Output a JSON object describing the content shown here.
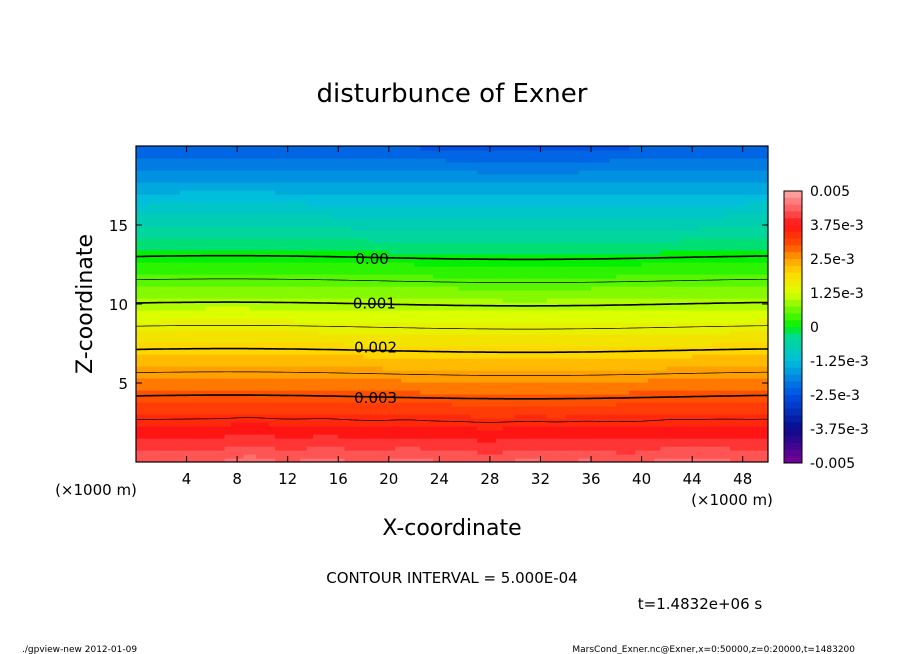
{
  "chart_data": {
    "type": "heatmap",
    "title": "disturbunce of Exner",
    "xlabel": "X-coordinate",
    "ylabel": "Z-coordinate",
    "x_unit_left": "(×1000 m)",
    "x_unit_right": "(×1000 m)",
    "xlim": [
      0,
      50
    ],
    "ylim": [
      0,
      20
    ],
    "x_ticks": [
      4,
      8,
      12,
      16,
      20,
      24,
      28,
      32,
      36,
      40,
      44,
      48
    ],
    "y_ticks": [
      5,
      10,
      15
    ],
    "colorbar": {
      "range": [
        -0.005,
        0.005
      ],
      "labels": [
        "0.005",
        "3.75e-3",
        "2.5e-3",
        "1.25e-3",
        "0",
        "-1.25e-3",
        "-2.5e-3",
        "-3.75e-3",
        "-0.005"
      ]
    },
    "contour_labels": [
      {
        "text": "0.00",
        "x": 17.2,
        "z": 12.9
      },
      {
        "text": "0.001",
        "x": 17.0,
        "z": 10.1
      },
      {
        "text": "0.002",
        "x": 17.1,
        "z": 7.3
      },
      {
        "text": "0.003",
        "x": 17.1,
        "z": 4.1
      }
    ],
    "contour_interval_text": "CONTOUR INTERVAL = 5.000E-04",
    "time_text": "t=1.4832e+06 s"
  },
  "footer": {
    "left": "./gpview-new  2012-01-09",
    "right": "MarsCond_Exner.nc@Exner,x=0:50000,z=0:20000,t=1483200"
  }
}
